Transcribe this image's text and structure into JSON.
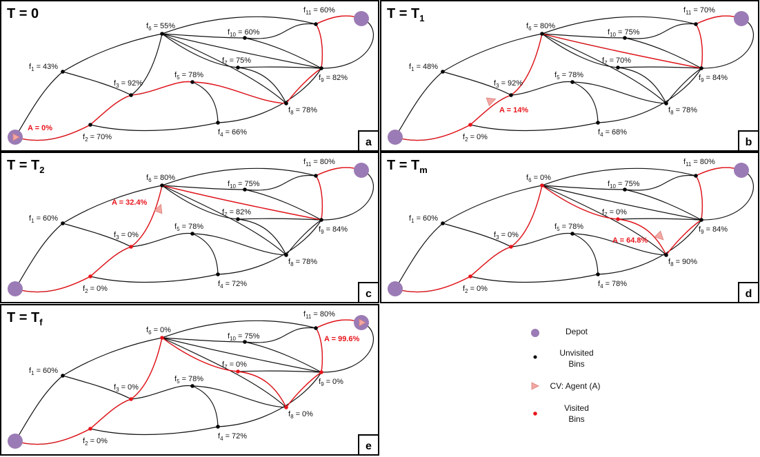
{
  "panels": [
    {
      "title": "T = 0",
      "title_sub": "",
      "letter": "a",
      "labels": {
        "f1": "43%",
        "f2": "70%",
        "f3": "92%",
        "f4": "66%",
        "f5": "78%",
        "f6": "55%",
        "f7": "75%",
        "f8": "78%",
        "f9": "82%",
        "f10": "60%",
        "f11": "60%"
      },
      "visited": [],
      "red_edges": [
        "D-f2",
        "f2-f3",
        "f3-f5",
        "f5-f8",
        "f8-f9",
        "f9-f11",
        "f11-D"
      ],
      "agent": {
        "label": "A = 0%",
        "at_depot": true
      }
    },
    {
      "title": "T = T",
      "title_sub": "1",
      "letter": "b",
      "labels": {
        "f1": "48%",
        "f2": "0%",
        "f3": "92%",
        "f4": "68%",
        "f5": "78%",
        "f6": "80%",
        "f7": "70%",
        "f8": "78%",
        "f9": "84%",
        "f10": "75%",
        "f11": "70%"
      },
      "visited": [
        "f2"
      ],
      "red_edges": [
        "D-f2",
        "f2-f3",
        "f3-f6",
        "f6-f9",
        "f9-f11",
        "f11-D"
      ],
      "agent": {
        "label": "A = 14%",
        "at_depot": false
      }
    },
    {
      "title": "T = T",
      "title_sub": "2",
      "letter": "c",
      "labels": {
        "f1": "60%",
        "f2": "0%",
        "f3": "0%",
        "f4": "72%",
        "f5": "78%",
        "f6": "80%",
        "f7": "82%",
        "f8": "78%",
        "f9": "84%",
        "f10": "75%",
        "f11": "80%"
      },
      "visited": [
        "f2",
        "f3"
      ],
      "red_edges": [
        "D-f2",
        "f2-f3",
        "f3-f6",
        "f6-f9",
        "f9-f11",
        "f11-D"
      ],
      "agent": {
        "label": "A = 32.4%",
        "at_depot": false
      }
    },
    {
      "title": "T = T",
      "title_sub": "m",
      "letter": "d",
      "labels": {
        "f1": "60%",
        "f2": "0%",
        "f3": "0%",
        "f4": "78%",
        "f5": "78%",
        "f6": "0%",
        "f7": "0%",
        "f8": "90%",
        "f9": "84%",
        "f10": "75%",
        "f11": "80%"
      },
      "visited": [
        "f2",
        "f3",
        "f6",
        "f7"
      ],
      "red_edges": [
        "D-f2",
        "f2-f3",
        "f3-f6",
        "f6-f7",
        "f7-f8",
        "f8-f9",
        "f9-f11",
        "f11-D"
      ],
      "agent": {
        "label": "A = 64.8%",
        "at_depot": false
      }
    },
    {
      "title": "T = T",
      "title_sub": "f",
      "letter": "e",
      "labels": {
        "f1": "60%",
        "f2": "0%",
        "f3": "0%",
        "f4": "72%",
        "f5": "78%",
        "f6": "0%",
        "f7": "0%",
        "f8": "0%",
        "f9": "0%",
        "f10": "75%",
        "f11": "80%"
      },
      "visited": [
        "f2",
        "f3",
        "f6",
        "f7",
        "f8",
        "f9"
      ],
      "red_edges": [
        "D-f2",
        "f2-f3",
        "f3-f6",
        "f6-f7",
        "f7-f8",
        "f8-f9",
        "f9-f11",
        "f11-D"
      ],
      "agent": {
        "label": "A = 99.6%",
        "at_depot": true
      }
    }
  ],
  "legend": {
    "depot": "Depot",
    "unvisited": [
      "Unvisited",
      "Bins"
    ],
    "agent": "CV: Agent (A)",
    "visited": [
      "Visited",
      "Bins"
    ]
  },
  "colors": {
    "depot": "#9b7bb5",
    "edge": "#111111",
    "route": "#e8141b",
    "agent": "#f4a7a3",
    "agent_stroke": "#d9827c",
    "visited_node": "#e8141b",
    "unvisited_node": "#000000"
  }
}
